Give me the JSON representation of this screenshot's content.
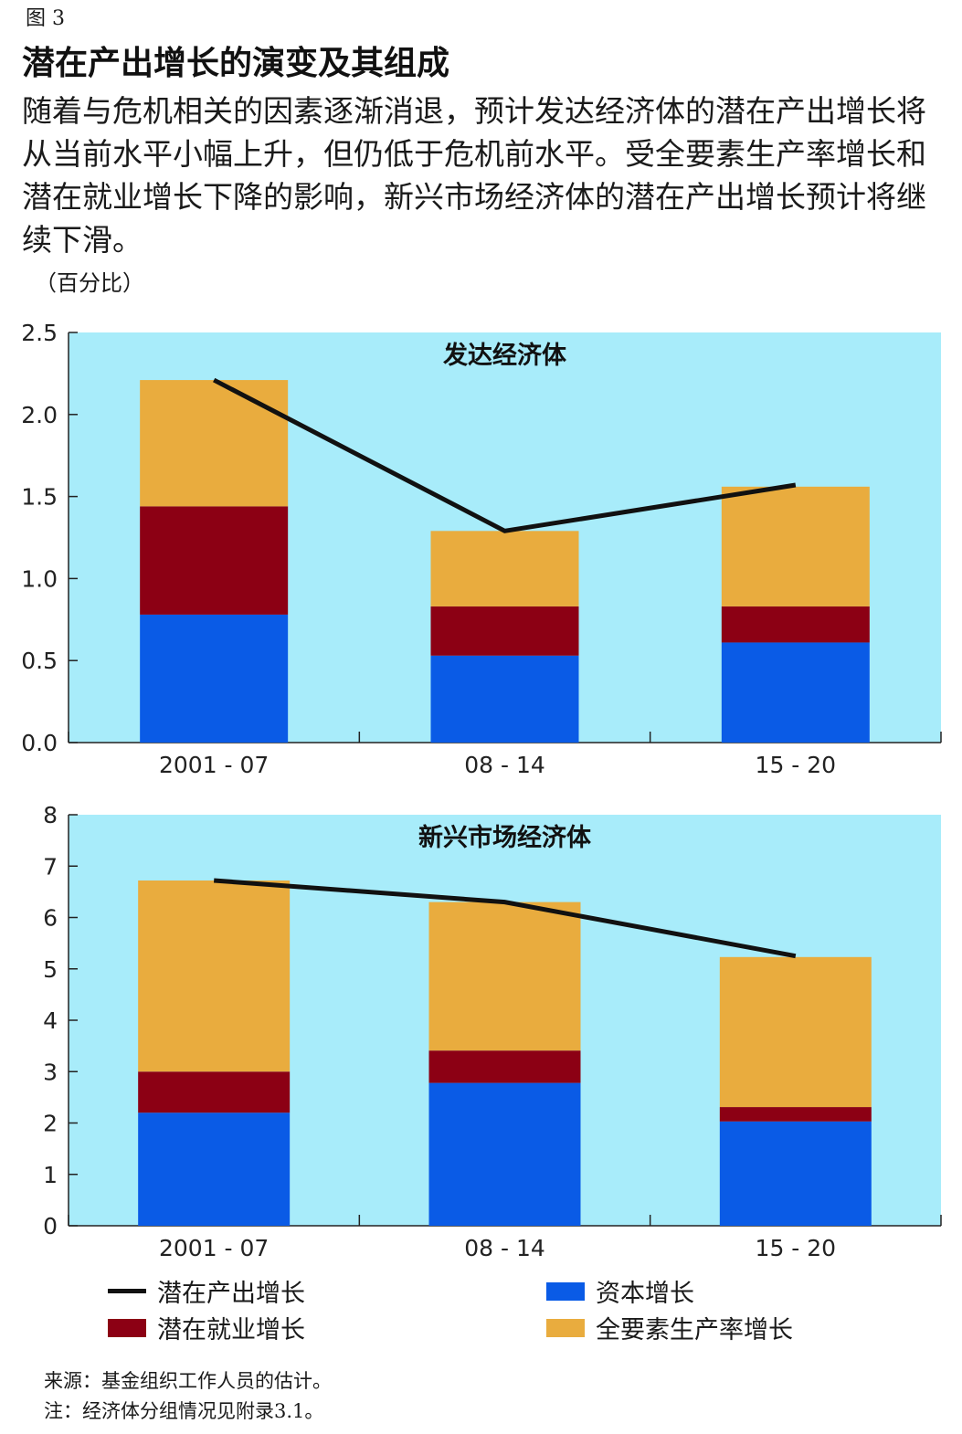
{
  "figure_label": "图 3",
  "title": "潜在产出增长的演变及其组成",
  "description": "随着与危机相关的因素逐渐消退，预计发达经济体的潜在产出增长将从当前水平小幅上升，但仍低于危机前水平。受全要素生产率增长和潜在就业增长下降的影响，新兴市场经济体的潜在产出增长预计将继续下滑。",
  "unit": "（百分比）",
  "colors": {
    "background": "#a8ecfa",
    "capital": "#0a5be6",
    "employment": "#8c0014",
    "tfp": "#e9ac3e",
    "potential": "#111111"
  },
  "chart_data": [
    {
      "type": "bar",
      "stacked": true,
      "title": "发达经济体",
      "categories": [
        "2001 - 07",
        "08 - 14",
        "15 - 20"
      ],
      "yticks": [
        "0.0",
        "0.5",
        "1.0",
        "1.5",
        "2.0",
        "2.5"
      ],
      "ylim": [
        0,
        2.5
      ],
      "series": [
        {
          "name": "资本增长",
          "values": [
            0.78,
            0.53,
            0.61
          ]
        },
        {
          "name": "潜在就业增长",
          "values": [
            0.66,
            0.3,
            0.22
          ]
        },
        {
          "name": "全要素生产率增长",
          "values": [
            0.77,
            0.46,
            0.73
          ]
        }
      ],
      "line": {
        "name": "潜在产出增长",
        "values": [
          2.21,
          1.29,
          1.57
        ]
      }
    },
    {
      "type": "bar",
      "stacked": true,
      "title": "新兴市场经济体",
      "categories": [
        "2001 - 07",
        "08 - 14",
        "15 - 20"
      ],
      "yticks": [
        "0",
        "1",
        "2",
        "3",
        "4",
        "5",
        "6",
        "7",
        "8"
      ],
      "ylim": [
        0,
        8
      ],
      "series": [
        {
          "name": "资本增长",
          "values": [
            2.2,
            2.78,
            2.03
          ]
        },
        {
          "name": "潜在就业增长",
          "values": [
            0.8,
            0.63,
            0.28
          ]
        },
        {
          "name": "全要素生产率增长",
          "values": [
            3.72,
            2.89,
            2.92
          ]
        }
      ],
      "line": {
        "name": "潜在产出增长",
        "values": [
          6.72,
          6.3,
          5.25
        ]
      }
    }
  ],
  "legend": {
    "potential": "潜在产出增长",
    "employment": "潜在就业增长",
    "capital": "资本增长",
    "tfp": "全要素生产率增长"
  },
  "notes": {
    "source": "来源：基金组织工作人员的估计。",
    "note": "注：经济体分组情况见附录3.1。"
  }
}
